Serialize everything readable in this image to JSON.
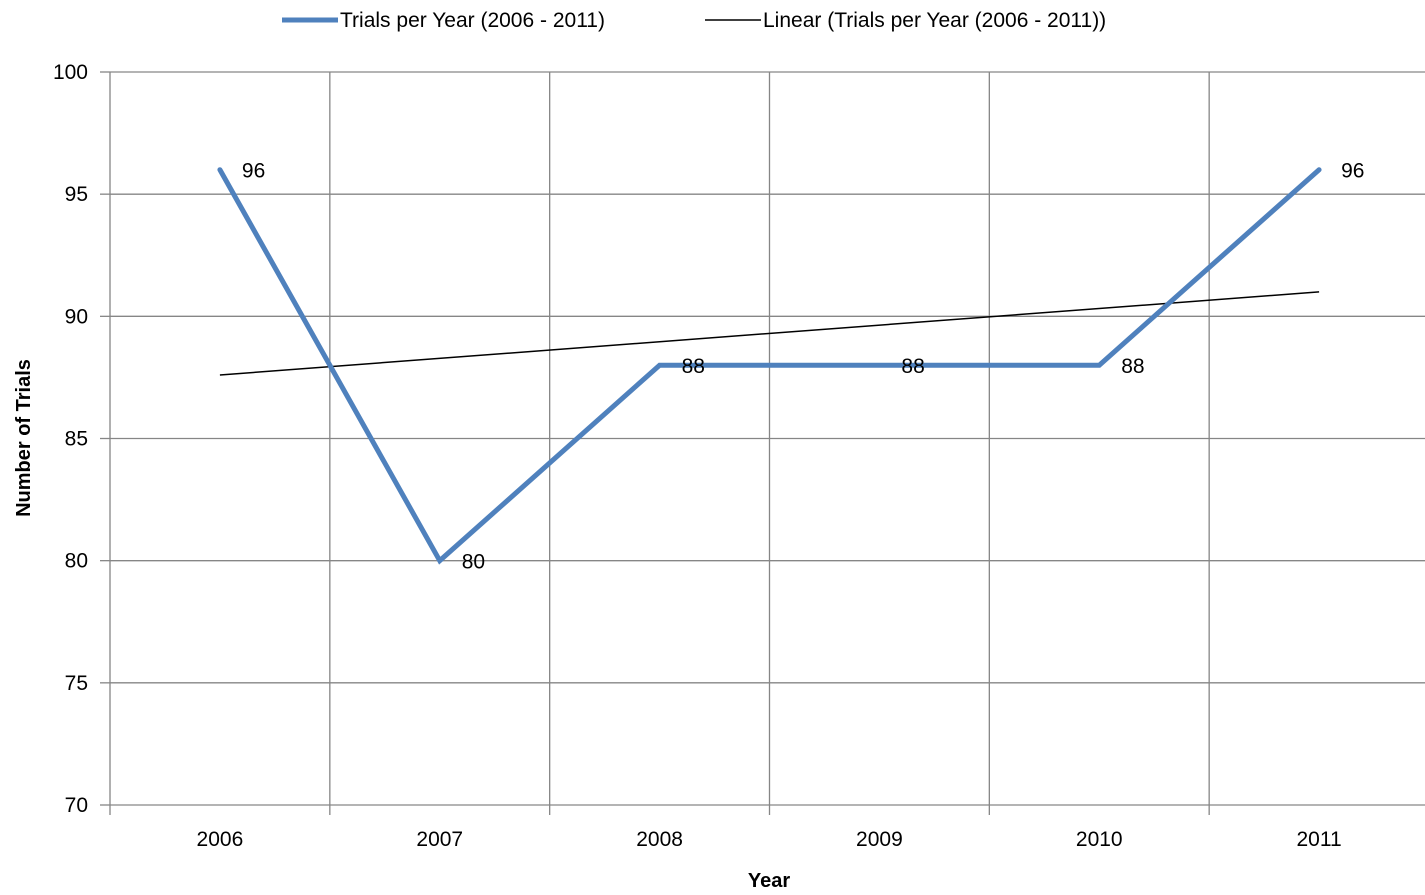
{
  "chart_data": {
    "type": "line",
    "title": "",
    "xlabel": "Year",
    "ylabel": "Number of Trials",
    "categories": [
      "2006",
      "2007",
      "2008",
      "2009",
      "2010",
      "2011"
    ],
    "ylim": [
      70,
      100
    ],
    "ytick_step": 5,
    "yticks": [
      "70",
      "75",
      "80",
      "85",
      "90",
      "95",
      "100"
    ],
    "grid": true,
    "legend_position": "top",
    "series": [
      {
        "name": "Trials per Year (2006 - 2011)",
        "values": [
          96,
          80,
          88,
          88,
          88,
          96
        ],
        "data_labels": [
          "96",
          "80",
          "88",
          "88",
          "88",
          "96"
        ],
        "color": "#4F81BD"
      }
    ],
    "trendline": {
      "name": "Linear (Trials per Year (2006 - 2011))",
      "type": "linear",
      "start": 87.6,
      "end": 91.0,
      "color": "#000000"
    }
  }
}
